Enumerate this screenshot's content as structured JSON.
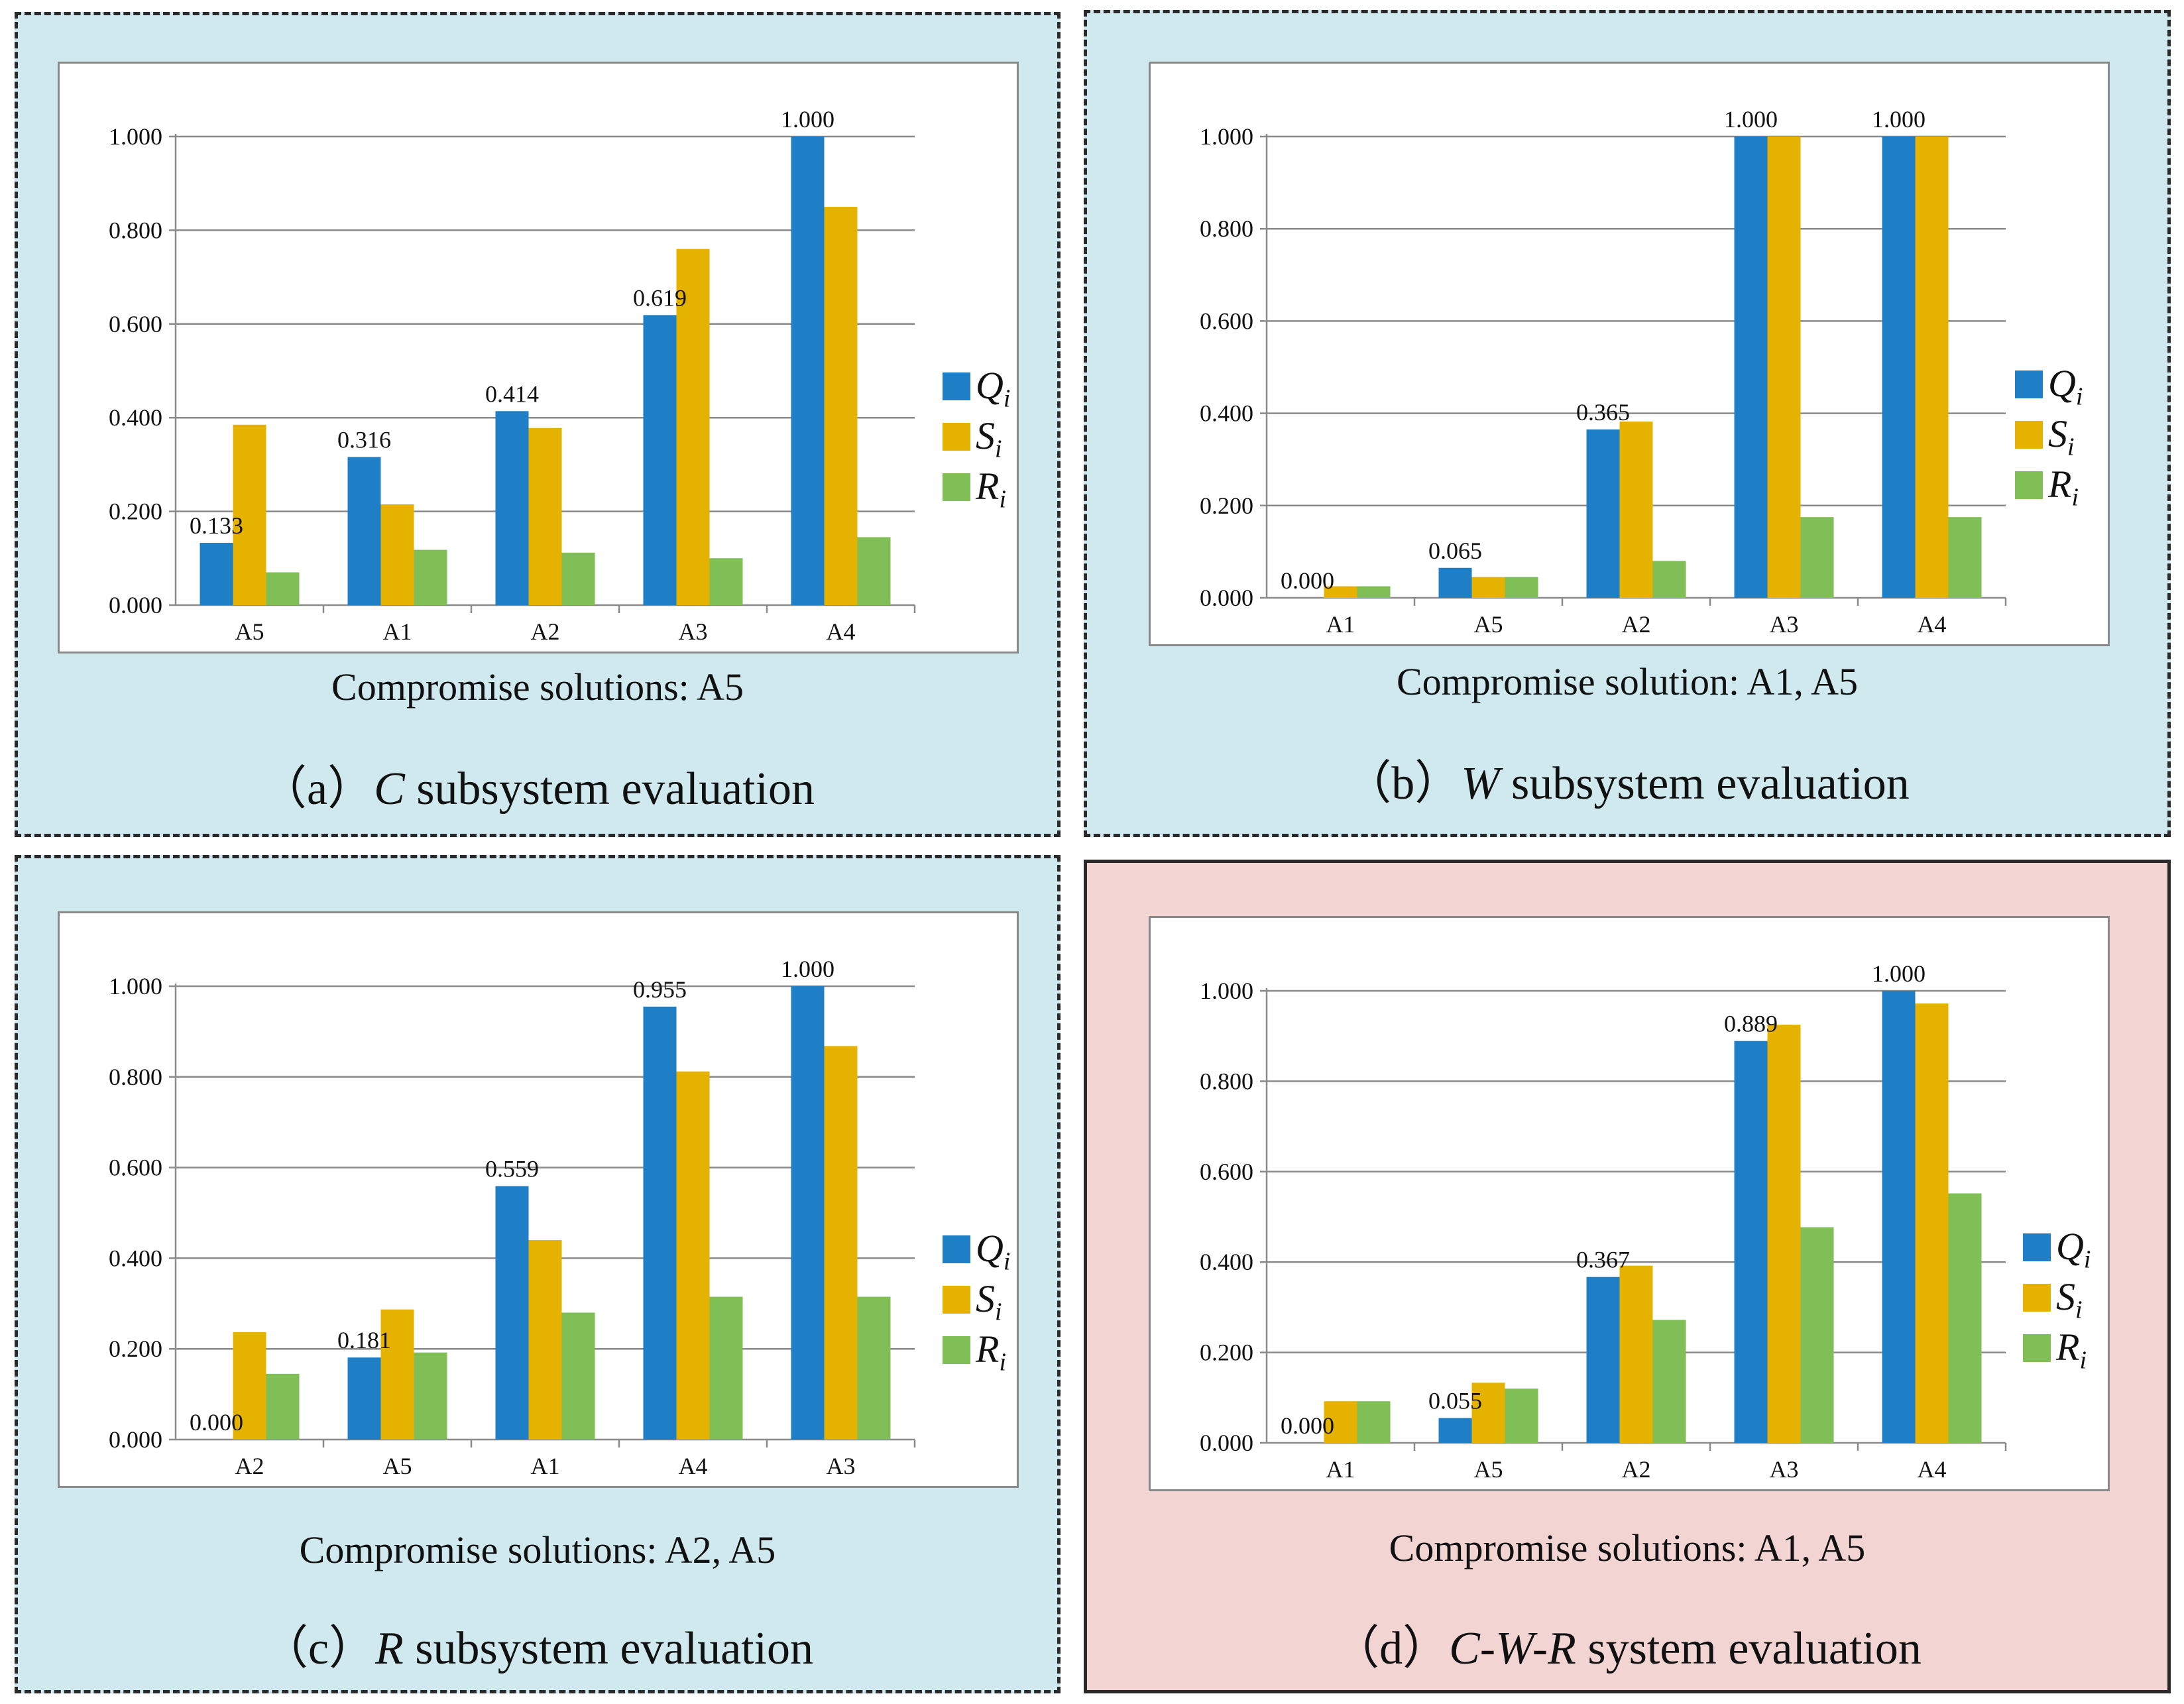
{
  "colors": {
    "Q": "#1f7fc6",
    "S": "#e5b200",
    "R": "#7fbf55",
    "panel_blue": "#cfe9ee",
    "panel_pink": "#f2d5d3"
  },
  "legend": [
    {
      "symbol": "Q",
      "sub": "i",
      "color_key": "Q"
    },
    {
      "symbol": "S",
      "sub": "i",
      "color_key": "S"
    },
    {
      "symbol": "R",
      "sub": "i",
      "color_key": "R"
    }
  ],
  "panels": [
    {
      "id": "a",
      "prefix": "（a）",
      "system": "C",
      "suffix": " subsystem evaluation",
      "compromise": "Compromise solutions: A5",
      "background": "panel_blue",
      "border": "dashed"
    },
    {
      "id": "b",
      "prefix": "（b）",
      "system": "W",
      "suffix": " subsystem evaluation",
      "compromise": "Compromise solution: A1, A5",
      "background": "panel_blue",
      "border": "dashed"
    },
    {
      "id": "c",
      "prefix": "（c）",
      "system": "R",
      "suffix": " subsystem evaluation",
      "compromise": "Compromise solutions: A2, A5",
      "background": "panel_blue",
      "border": "dashed"
    },
    {
      "id": "d",
      "prefix": "（d）",
      "system": "C-W-R",
      "suffix": " system evaluation",
      "compromise": "Compromise solutions: A1, A5",
      "background": "panel_pink",
      "border": "solid"
    }
  ],
  "chart_data": [
    {
      "type": "bar",
      "panel": "a",
      "categories": [
        "A5",
        "A1",
        "A2",
        "A3",
        "A4"
      ],
      "series": [
        {
          "name": "Qi",
          "values": [
            0.133,
            0.316,
            0.414,
            0.619,
            1.0
          ]
        },
        {
          "name": "Si",
          "values": [
            0.385,
            0.215,
            0.378,
            0.76,
            0.85
          ]
        },
        {
          "name": "Ri",
          "values": [
            0.07,
            0.118,
            0.112,
            0.1,
            0.145
          ]
        }
      ],
      "data_labels": [
        "0.133",
        "0.316",
        "0.414",
        "0.619",
        "1.000"
      ],
      "yticks": [
        "0.000",
        "0.200",
        "0.400",
        "0.600",
        "0.800",
        "1.000"
      ],
      "ylim": [
        0,
        1
      ],
      "grid": true,
      "legend": "right"
    },
    {
      "type": "bar",
      "panel": "b",
      "categories": [
        "A1",
        "A5",
        "A2",
        "A3",
        "A4"
      ],
      "series": [
        {
          "name": "Qi",
          "values": [
            0.0,
            0.065,
            0.365,
            1.0,
            1.0
          ]
        },
        {
          "name": "Si",
          "values": [
            0.025,
            0.045,
            0.382,
            1.0,
            1.0
          ]
        },
        {
          "name": "Ri",
          "values": [
            0.025,
            0.045,
            0.08,
            0.175,
            0.175
          ]
        }
      ],
      "data_labels": [
        "0.000",
        "0.065",
        "0.365",
        "1.000",
        "1.000"
      ],
      "yticks": [
        "0.000",
        "0.200",
        "0.400",
        "0.600",
        "0.800",
        "1.000"
      ],
      "ylim": [
        0,
        1
      ],
      "grid": true,
      "legend": "right"
    },
    {
      "type": "bar",
      "panel": "c",
      "categories": [
        "A2",
        "A5",
        "A1",
        "A4",
        "A3"
      ],
      "series": [
        {
          "name": "Qi",
          "values": [
            0.0,
            0.181,
            0.559,
            0.955,
            1.0
          ]
        },
        {
          "name": "Si",
          "values": [
            0.237,
            0.287,
            0.44,
            0.812,
            0.868
          ]
        },
        {
          "name": "Ri",
          "values": [
            0.145,
            0.192,
            0.28,
            0.315,
            0.315
          ]
        }
      ],
      "data_labels": [
        "0.000",
        "0.181",
        "0.559",
        "0.955",
        "1.000"
      ],
      "yticks": [
        "0.000",
        "0.200",
        "0.400",
        "0.600",
        "0.800",
        "1.000"
      ],
      "ylim": [
        0,
        1
      ],
      "grid": true,
      "legend": "right"
    },
    {
      "type": "bar",
      "panel": "d",
      "categories": [
        "A1",
        "A5",
        "A2",
        "A3",
        "A4"
      ],
      "series": [
        {
          "name": "Qi",
          "values": [
            0.0,
            0.055,
            0.367,
            0.889,
            1.0
          ]
        },
        {
          "name": "Si",
          "values": [
            0.092,
            0.133,
            0.392,
            0.925,
            0.972
          ]
        },
        {
          "name": "Ri",
          "values": [
            0.092,
            0.12,
            0.272,
            0.477,
            0.552
          ]
        }
      ],
      "data_labels": [
        "0.000",
        "0.055",
        "0.367",
        "0.889",
        "1.000"
      ],
      "yticks": [
        "0.000",
        "0.200",
        "0.400",
        "0.600",
        "0.800",
        "1.000"
      ],
      "ylim": [
        0,
        1
      ],
      "grid": true,
      "legend": "right"
    }
  ]
}
